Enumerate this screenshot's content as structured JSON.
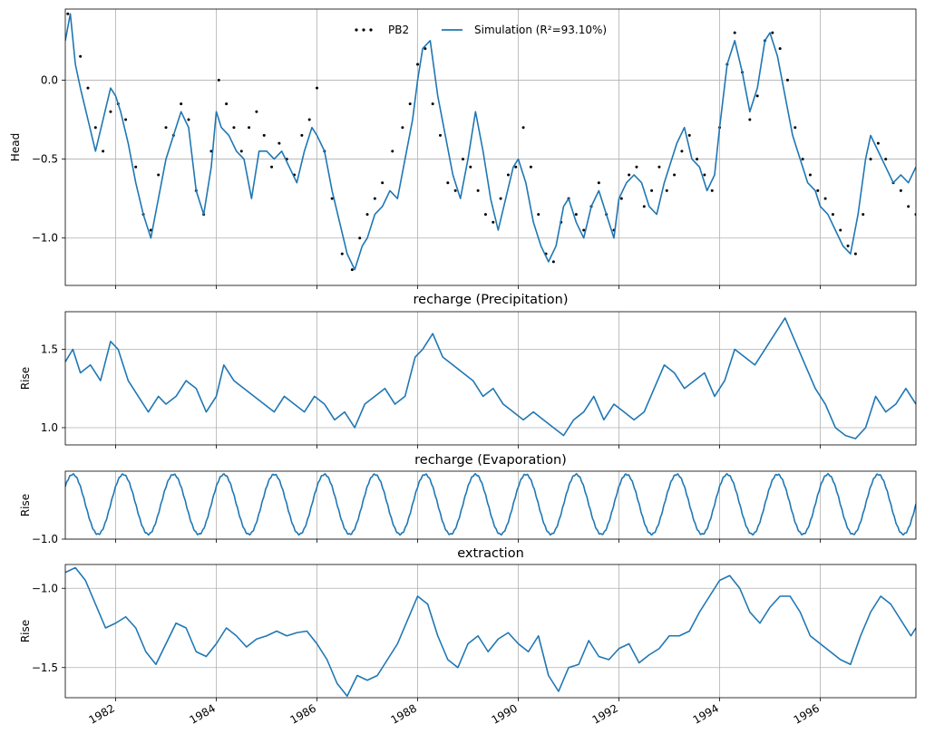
{
  "chart_data": [
    {
      "type": "line",
      "title": "",
      "ylabel": "Head",
      "ylim": [
        -1.3,
        0.45
      ],
      "yticks": [
        0.0,
        -0.5,
        -1.0
      ],
      "xlim": [
        1981.0,
        1997.9
      ],
      "grid": true,
      "legend": {
        "placement": "top-center",
        "entries": [
          "PB2",
          "Simulation (R²=93.10%)"
        ]
      },
      "series": [
        {
          "name": "PB2",
          "style": "points",
          "color": "#000000",
          "x": [
            1981.05,
            1981.3,
            1981.45,
            1981.6,
            1981.75,
            1981.9,
            1982.05,
            1982.2,
            1982.4,
            1982.55,
            1982.7,
            1982.85,
            1983.0,
            1983.15,
            1983.3,
            1983.45,
            1983.6,
            1983.75,
            1983.9,
            1984.05,
            1984.2,
            1984.35,
            1984.5,
            1984.65,
            1984.8,
            1984.95,
            1985.1,
            1985.25,
            1985.4,
            1985.55,
            1985.7,
            1985.85,
            1986.0,
            1986.15,
            1986.3,
            1986.5,
            1986.7,
            1986.85,
            1987.0,
            1987.15,
            1987.3,
            1987.5,
            1987.7,
            1987.85,
            1988.0,
            1988.15,
            1988.3,
            1988.45,
            1988.6,
            1988.75,
            1988.9,
            1989.05,
            1989.2,
            1989.35,
            1989.5,
            1989.65,
            1989.8,
            1989.95,
            1990.1,
            1990.25,
            1990.4,
            1990.55,
            1990.7,
            1990.85,
            1991.0,
            1991.15,
            1991.3,
            1991.45,
            1991.6,
            1991.75,
            1991.9,
            1992.05,
            1992.2,
            1992.35,
            1992.5,
            1992.65,
            1992.8,
            1992.95,
            1993.1,
            1993.25,
            1993.4,
            1993.55,
            1993.7,
            1993.85,
            1994.0,
            1994.15,
            1994.3,
            1994.45,
            1994.6,
            1994.75,
            1994.9,
            1995.05,
            1995.2,
            1995.35,
            1995.5,
            1995.65,
            1995.8,
            1995.95,
            1996.1,
            1996.25,
            1996.4,
            1996.55,
            1996.7,
            1996.85,
            1997.0,
            1997.15,
            1997.3,
            1997.45,
            1997.6,
            1997.75,
            1997.9
          ],
          "y": [
            0.42,
            0.15,
            -0.05,
            -0.3,
            -0.45,
            -0.2,
            -0.15,
            -0.25,
            -0.55,
            -0.85,
            -0.95,
            -0.6,
            -0.3,
            -0.35,
            -0.15,
            -0.25,
            -0.7,
            -0.85,
            -0.45,
            0.0,
            -0.15,
            -0.3,
            -0.45,
            -0.3,
            -0.2,
            -0.35,
            -0.55,
            -0.4,
            -0.5,
            -0.6,
            -0.35,
            -0.25,
            -0.05,
            -0.45,
            -0.75,
            -1.1,
            -1.2,
            -1.0,
            -0.85,
            -0.75,
            -0.65,
            -0.45,
            -0.3,
            -0.15,
            0.1,
            0.2,
            -0.15,
            -0.35,
            -0.65,
            -0.7,
            -0.5,
            -0.55,
            -0.7,
            -0.85,
            -0.9,
            -0.75,
            -0.6,
            -0.55,
            -0.3,
            -0.55,
            -0.85,
            -1.1,
            -1.15,
            -0.9,
            -0.75,
            -0.85,
            -0.95,
            -0.8,
            -0.65,
            -0.85,
            -0.95,
            -0.75,
            -0.6,
            -0.55,
            -0.8,
            -0.7,
            -0.55,
            -0.7,
            -0.6,
            -0.45,
            -0.35,
            -0.5,
            -0.6,
            -0.7,
            -0.3,
            0.1,
            0.3,
            0.05,
            -0.25,
            -0.1,
            0.25,
            0.3,
            0.2,
            0.0,
            -0.3,
            -0.5,
            -0.6,
            -0.7,
            -0.75,
            -0.85,
            -0.95,
            -1.05,
            -1.1,
            -0.85,
            -0.5,
            -0.4,
            -0.5,
            -0.65,
            -0.7,
            -0.8,
            -0.85
          ]
        },
        {
          "name": "Simulation (R²=93.10%)",
          "style": "line",
          "color": "#1f77b4",
          "x": [
            1981.0,
            1981.1,
            1981.2,
            1981.3,
            1981.45,
            1981.6,
            1981.75,
            1981.9,
            1982.0,
            1982.1,
            1982.25,
            1982.4,
            1982.55,
            1982.7,
            1982.85,
            1983.0,
            1983.15,
            1983.3,
            1983.45,
            1983.6,
            1983.75,
            1983.9,
            1984.0,
            1984.1,
            1984.25,
            1984.4,
            1984.55,
            1984.7,
            1984.85,
            1985.0,
            1985.15,
            1985.3,
            1985.45,
            1985.6,
            1985.75,
            1985.9,
            1986.0,
            1986.15,
            1986.3,
            1986.45,
            1986.6,
            1986.75,
            1986.9,
            1987.0,
            1987.15,
            1987.3,
            1987.45,
            1987.6,
            1987.75,
            1987.9,
            1988.0,
            1988.1,
            1988.25,
            1988.4,
            1988.55,
            1988.7,
            1988.85,
            1989.0,
            1989.15,
            1989.3,
            1989.45,
            1989.6,
            1989.75,
            1989.9,
            1990.0,
            1990.15,
            1990.3,
            1990.45,
            1990.6,
            1990.75,
            1990.9,
            1991.0,
            1991.15,
            1991.3,
            1991.45,
            1991.6,
            1991.75,
            1991.9,
            1992.0,
            1992.15,
            1992.3,
            1992.45,
            1992.6,
            1992.75,
            1992.9,
            1993.0,
            1993.15,
            1993.3,
            1993.45,
            1993.6,
            1993.75,
            1993.9,
            1994.0,
            1994.15,
            1994.3,
            1994.45,
            1994.6,
            1994.75,
            1994.9,
            1995.0,
            1995.15,
            1995.3,
            1995.45,
            1995.6,
            1995.75,
            1995.9,
            1996.0,
            1996.15,
            1996.3,
            1996.45,
            1996.6,
            1996.75,
            1996.9,
            1997.0,
            1997.15,
            1997.3,
            1997.45,
            1997.6,
            1997.75,
            1997.9
          ],
          "y": [
            0.25,
            0.42,
            0.1,
            -0.05,
            -0.25,
            -0.45,
            -0.25,
            -0.05,
            -0.1,
            -0.2,
            -0.4,
            -0.65,
            -0.85,
            -1.0,
            -0.75,
            -0.5,
            -0.35,
            -0.2,
            -0.3,
            -0.7,
            -0.85,
            -0.55,
            -0.2,
            -0.3,
            -0.35,
            -0.45,
            -0.5,
            -0.75,
            -0.45,
            -0.45,
            -0.5,
            -0.45,
            -0.55,
            -0.65,
            -0.45,
            -0.3,
            -0.35,
            -0.45,
            -0.7,
            -0.9,
            -1.1,
            -1.2,
            -1.05,
            -1.0,
            -0.85,
            -0.8,
            -0.7,
            -0.75,
            -0.5,
            -0.25,
            0.0,
            0.2,
            0.25,
            -0.1,
            -0.35,
            -0.6,
            -0.75,
            -0.5,
            -0.2,
            -0.45,
            -0.75,
            -0.95,
            -0.75,
            -0.55,
            -0.5,
            -0.65,
            -0.9,
            -1.05,
            -1.15,
            -1.05,
            -0.8,
            -0.75,
            -0.9,
            -1.0,
            -0.8,
            -0.7,
            -0.85,
            -1.0,
            -0.75,
            -0.65,
            -0.6,
            -0.65,
            -0.8,
            -0.85,
            -0.65,
            -0.55,
            -0.4,
            -0.3,
            -0.5,
            -0.55,
            -0.7,
            -0.6,
            -0.3,
            0.1,
            0.25,
            0.05,
            -0.2,
            -0.05,
            0.25,
            0.3,
            0.15,
            -0.1,
            -0.35,
            -0.5,
            -0.65,
            -0.7,
            -0.8,
            -0.85,
            -0.95,
            -1.05,
            -1.1,
            -0.85,
            -0.5,
            -0.35,
            -0.45,
            -0.55,
            -0.65,
            -0.6,
            -0.65,
            -0.55
          ]
        }
      ]
    },
    {
      "type": "line",
      "title": "recharge (Precipitation)",
      "ylabel": "Rise",
      "ylim": [
        0.89,
        1.74
      ],
      "yticks": [
        1.5,
        1.0
      ],
      "xlim": [
        1981.0,
        1997.9
      ],
      "grid": true,
      "series": [
        {
          "name": "",
          "color": "#1f77b4",
          "x": [
            1981.0,
            1981.15,
            1981.3,
            1981.5,
            1981.7,
            1981.9,
            1982.05,
            1982.25,
            1982.45,
            1982.65,
            1982.85,
            1983.0,
            1983.2,
            1983.4,
            1983.6,
            1983.8,
            1984.0,
            1984.15,
            1984.35,
            1984.55,
            1984.75,
            1984.95,
            1985.15,
            1985.35,
            1985.55,
            1985.75,
            1985.95,
            1986.15,
            1986.35,
            1986.55,
            1986.75,
            1986.95,
            1987.15,
            1987.35,
            1987.55,
            1987.75,
            1987.95,
            1988.1,
            1988.3,
            1988.5,
            1988.7,
            1988.9,
            1989.1,
            1989.3,
            1989.5,
            1989.7,
            1989.9,
            1990.1,
            1990.3,
            1990.5,
            1990.7,
            1990.9,
            1991.1,
            1991.3,
            1991.5,
            1991.7,
            1991.9,
            1992.1,
            1992.3,
            1992.5,
            1992.7,
            1992.9,
            1993.1,
            1993.3,
            1993.5,
            1993.7,
            1993.9,
            1994.1,
            1994.3,
            1994.5,
            1994.7,
            1994.9,
            1995.1,
            1995.3,
            1995.5,
            1995.7,
            1995.9,
            1996.1,
            1996.3,
            1996.5,
            1996.7,
            1996.9,
            1997.1,
            1997.3,
            1997.5,
            1997.7,
            1997.9
          ],
          "y": [
            1.42,
            1.5,
            1.35,
            1.4,
            1.3,
            1.55,
            1.5,
            1.3,
            1.2,
            1.1,
            1.2,
            1.15,
            1.2,
            1.3,
            1.25,
            1.1,
            1.2,
            1.4,
            1.3,
            1.25,
            1.2,
            1.15,
            1.1,
            1.2,
            1.15,
            1.1,
            1.2,
            1.15,
            1.05,
            1.1,
            1.0,
            1.15,
            1.2,
            1.25,
            1.15,
            1.2,
            1.45,
            1.5,
            1.6,
            1.45,
            1.4,
            1.35,
            1.3,
            1.2,
            1.25,
            1.15,
            1.1,
            1.05,
            1.1,
            1.05,
            1.0,
            0.95,
            1.05,
            1.1,
            1.2,
            1.05,
            1.15,
            1.1,
            1.05,
            1.1,
            1.25,
            1.4,
            1.35,
            1.25,
            1.3,
            1.35,
            1.2,
            1.3,
            1.5,
            1.45,
            1.4,
            1.5,
            1.6,
            1.7,
            1.55,
            1.4,
            1.25,
            1.15,
            1.0,
            0.95,
            0.93,
            1.0,
            1.2,
            1.1,
            1.15,
            1.25,
            1.15
          ]
        }
      ]
    },
    {
      "type": "line",
      "title": "recharge (Evaporation)",
      "ylabel": "Rise",
      "ylim": [
        -1.0,
        -0.58
      ],
      "yticks": [
        -1.0
      ],
      "yticklabels": [
        "−1.0"
      ],
      "xlim": [
        1981.0,
        1997.9
      ],
      "grid": true,
      "series": [
        {
          "name": "",
          "color": "#1f77b4",
          "seasonal": {
            "period_years": 1.0,
            "min": -0.97,
            "max": -0.6,
            "peak_phase": 0.15
          },
          "x": [],
          "y": []
        }
      ]
    },
    {
      "type": "line",
      "title": "extraction",
      "ylabel": "Rise",
      "ylim": [
        -1.69,
        -0.85
      ],
      "yticks": [
        -1.0,
        -1.5
      ],
      "xlim": [
        1981.0,
        1997.9
      ],
      "grid": true,
      "xticks": [
        1982,
        1984,
        1986,
        1988,
        1990,
        1992,
        1994,
        1996
      ],
      "xticklabels": [
        "1982",
        "1984",
        "1986",
        "1988",
        "1990",
        "1992",
        "1994",
        "1996"
      ],
      "series": [
        {
          "name": "",
          "color": "#1f77b4",
          "x": [
            1981.0,
            1981.2,
            1981.4,
            1981.6,
            1981.8,
            1982.0,
            1982.2,
            1982.4,
            1982.6,
            1982.8,
            1983.0,
            1983.2,
            1983.4,
            1983.6,
            1983.8,
            1984.0,
            1984.2,
            1984.4,
            1984.6,
            1984.8,
            1985.0,
            1985.2,
            1985.4,
            1985.6,
            1985.8,
            1986.0,
            1986.2,
            1986.4,
            1986.6,
            1986.8,
            1987.0,
            1987.2,
            1987.4,
            1987.6,
            1987.8,
            1988.0,
            1988.2,
            1988.4,
            1988.6,
            1988.8,
            1989.0,
            1989.2,
            1989.4,
            1989.6,
            1989.8,
            1990.0,
            1990.2,
            1990.4,
            1990.6,
            1990.8,
            1991.0,
            1991.2,
            1991.4,
            1991.6,
            1991.8,
            1992.0,
            1992.2,
            1992.4,
            1992.6,
            1992.8,
            1993.0,
            1993.2,
            1993.4,
            1993.6,
            1993.8,
            1994.0,
            1994.2,
            1994.4,
            1994.6,
            1994.8,
            1995.0,
            1995.2,
            1995.4,
            1995.6,
            1995.8,
            1996.0,
            1996.2,
            1996.4,
            1996.6,
            1996.8,
            1997.0,
            1997.2,
            1997.4,
            1997.6,
            1997.8,
            1997.9
          ],
          "y": [
            -0.9,
            -0.87,
            -0.95,
            -1.1,
            -1.25,
            -1.22,
            -1.18,
            -1.25,
            -1.4,
            -1.48,
            -1.35,
            -1.22,
            -1.25,
            -1.4,
            -1.43,
            -1.35,
            -1.25,
            -1.3,
            -1.37,
            -1.32,
            -1.3,
            -1.27,
            -1.3,
            -1.28,
            -1.27,
            -1.35,
            -1.45,
            -1.6,
            -1.68,
            -1.55,
            -1.58,
            -1.55,
            -1.45,
            -1.35,
            -1.2,
            -1.05,
            -1.1,
            -1.3,
            -1.45,
            -1.5,
            -1.35,
            -1.3,
            -1.4,
            -1.32,
            -1.28,
            -1.35,
            -1.4,
            -1.3,
            -1.55,
            -1.65,
            -1.5,
            -1.48,
            -1.33,
            -1.43,
            -1.45,
            -1.38,
            -1.35,
            -1.47,
            -1.42,
            -1.38,
            -1.3,
            -1.3,
            -1.27,
            -1.15,
            -1.05,
            -0.95,
            -0.92,
            -1.0,
            -1.15,
            -1.22,
            -1.12,
            -1.05,
            -1.05,
            -1.15,
            -1.3,
            -1.35,
            -1.4,
            -1.45,
            -1.48,
            -1.3,
            -1.15,
            -1.05,
            -1.1,
            -1.2,
            -1.3,
            -1.25
          ]
        }
      ]
    }
  ]
}
